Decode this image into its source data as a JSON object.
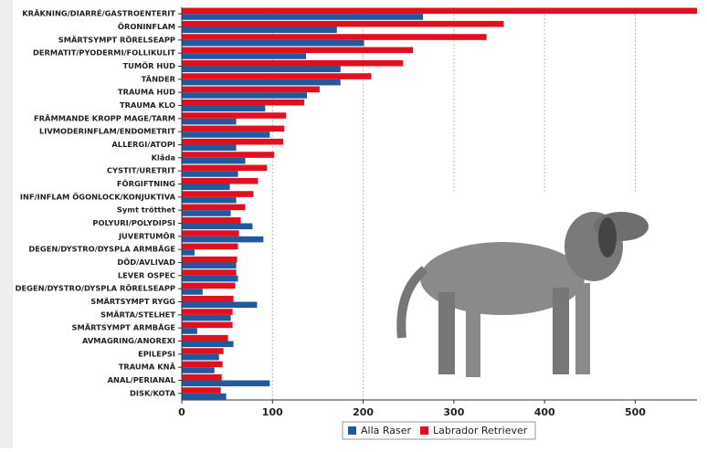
{
  "chart_data": {
    "type": "hbar",
    "categories": [
      "KRÄKNING/DIARRÉ/GASTROENTERIT",
      "ÖRONINFLAM",
      "SMÄRTSYMPT RÖRELSEAPP",
      "DERMATIT/PYODERMI/FOLLIKULIT",
      "TUMÖR HUD",
      "TÄNDER",
      "TRAUMA HUD",
      "TRAUMA KLO",
      "FRÄMMANDE KROPP MAGE/TARM",
      "LIVMODERINFLAM/ENDOMETRIT",
      "ALLERGI/ATOPI",
      "Klåda",
      "CYSTIT/URETRIT",
      "FÖRGIFTNING",
      "INF/INFLAM ÖGONLOCK/KONJUKTIVA",
      "Symt trötthet",
      "POLYURI/POLYDIPSI",
      "JUVERTUMÖR",
      "DEGEN/DYSTRO/DYSPLA ARMBÅGE",
      "DÖD/AVLIVAD",
      "LEVER OSPEC",
      "DEGEN/DYSTRO/DYSPLA RÖRELSEAPP",
      "SMÄRTSYMPT RYGG",
      "SMÄRTA/STELHET",
      "SMÄRTSYMPT ARMBÅGE",
      "AVMAGRING/ANOREXI",
      "EPILEPSI",
      "TRAUMA KNÄ",
      "ANAL/PERIANAL",
      "DISK/KOTA"
    ],
    "series": [
      {
        "name": "Alla Raser",
        "color": "#1f5aa0",
        "values": [
          266,
          171,
          201,
          137,
          175,
          175,
          138,
          92,
          60,
          97,
          60,
          70,
          62,
          53,
          60,
          54,
          78,
          90,
          14,
          60,
          62,
          23,
          83,
          54,
          17,
          57,
          41,
          36,
          97,
          49
        ]
      },
      {
        "name": "Labrador Retriever",
        "color": "#e0101e",
        "values": [
          568,
          355,
          336,
          255,
          244,
          209,
          152,
          135,
          115,
          113,
          112,
          102,
          94,
          84,
          79,
          70,
          65,
          63,
          62,
          61,
          60,
          59,
          57,
          56,
          56,
          51,
          46,
          45,
          44,
          43
        ]
      }
    ],
    "xlim": [
      0,
      568
    ],
    "xticks": [
      0,
      100,
      200,
      300,
      400,
      500
    ],
    "grid": true,
    "legend": "bottom"
  }
}
